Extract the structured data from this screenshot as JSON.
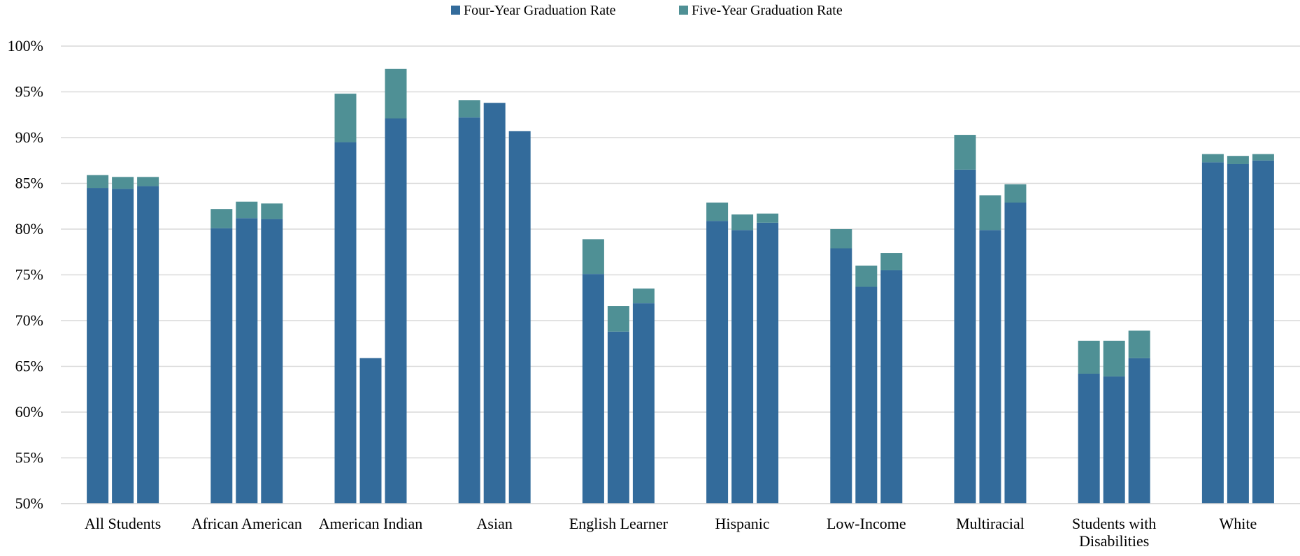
{
  "chart_data": {
    "type": "bar",
    "stacked": true,
    "categories": [
      [
        "All Students"
      ],
      [
        "African American"
      ],
      [
        "American Indian"
      ],
      [
        "Asian"
      ],
      [
        "English Learner"
      ],
      [
        "Hispanic"
      ],
      [
        "Low-Income"
      ],
      [
        "Multiracial"
      ],
      [
        "Students with",
        "Disabilities"
      ],
      [
        "White"
      ]
    ],
    "bars_per_category": 3,
    "series": [
      {
        "name": "Four-Year Graduation Rate",
        "color": "#336b9b",
        "values": [
          [
            84.5,
            84.4,
            84.7
          ],
          [
            80.1,
            81.2,
            81.1
          ],
          [
            89.5,
            65.9,
            92.1
          ],
          [
            92.2,
            93.8,
            90.7
          ],
          [
            75.1,
            68.8,
            71.9
          ],
          [
            80.9,
            79.9,
            80.7
          ],
          [
            77.9,
            73.7,
            75.5
          ],
          [
            86.5,
            79.9,
            82.9
          ],
          [
            64.2,
            63.9,
            65.9
          ],
          [
            87.3,
            87.1,
            87.5
          ]
        ]
      },
      {
        "name": "Five-Year Graduation Rate",
        "color": "#4f9095",
        "values": [
          [
            1.4,
            1.3,
            1.0
          ],
          [
            2.1,
            1.8,
            1.7
          ],
          [
            5.3,
            0.0,
            5.4
          ],
          [
            1.9,
            0.0,
            0.0
          ],
          [
            3.8,
            2.8,
            1.6
          ],
          [
            2.0,
            1.7,
            1.0
          ],
          [
            2.1,
            2.3,
            1.9
          ],
          [
            3.8,
            3.8,
            2.0
          ],
          [
            3.6,
            3.9,
            3.0
          ],
          [
            0.9,
            0.9,
            0.7
          ]
        ]
      }
    ],
    "ylim": [
      50,
      100
    ],
    "ytick_step": 5,
    "ytick_format": "percent",
    "xlabel": "",
    "ylabel": "",
    "grid": true,
    "legend_position": "top-center"
  }
}
